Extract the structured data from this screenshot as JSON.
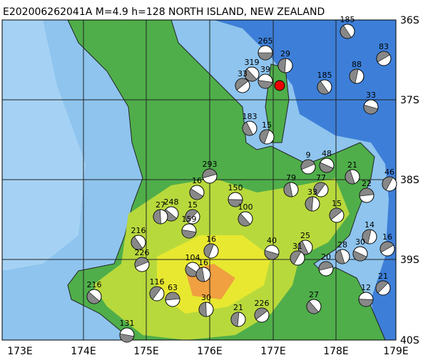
{
  "header": {
    "title": "E202006262041A M=4.9 h=128 NORTH ISLAND, NEW ZEALAND"
  },
  "map": {
    "lat_labels": [
      "36S",
      "37S",
      "38S",
      "39S",
      "40S"
    ],
    "lon_labels": [
      "173E",
      "174E",
      "175E",
      "176E",
      "177E",
      "178E",
      "179E"
    ],
    "events": [
      "265",
      "319",
      "29",
      "33",
      "39",
      "185",
      "88",
      "83",
      "33",
      "183",
      "15",
      "9",
      "48",
      "21",
      "46",
      "293",
      "16",
      "79",
      "77",
      "22",
      "248",
      "27",
      "15",
      "150",
      "100",
      "33",
      "15",
      "159",
      "216",
      "14",
      "16",
      "40",
      "25",
      "16",
      "226",
      "30",
      "28",
      "31",
      "20",
      "104",
      "16",
      "116",
      "63",
      "216",
      "30",
      "21",
      "12",
      "27",
      "21",
      "226",
      "131",
      "185"
    ]
  }
}
